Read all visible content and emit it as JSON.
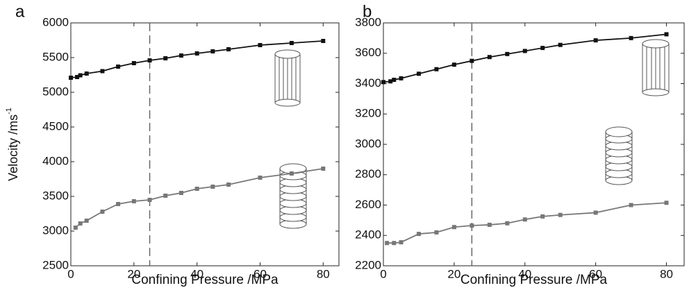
{
  "chart_data": [
    {
      "type": "line",
      "panel_label": "a",
      "ylabel": "Velocity /ms",
      "ylabel_sup": "-1",
      "xlabel": "Confining Pressure /MPa",
      "xlim": [
        0,
        85
      ],
      "xticks": [
        0,
        20,
        40,
        60,
        80
      ],
      "ylim": [
        2500,
        6000
      ],
      "yticks": [
        2500,
        3000,
        3500,
        4000,
        4500,
        5000,
        5500,
        6000
      ],
      "vline": 25,
      "series": [
        {
          "color": "#111111",
          "x": [
            0,
            2,
            3,
            5,
            10,
            15,
            20,
            25,
            30,
            35,
            40,
            45,
            50,
            60,
            70,
            80
          ],
          "values": [
            5210,
            5220,
            5245,
            5270,
            5305,
            5370,
            5420,
            5460,
            5490,
            5530,
            5560,
            5590,
            5620,
            5680,
            5710,
            5740
          ]
        },
        {
          "color": "#777777",
          "x": [
            1.5,
            3,
            5,
            10,
            15,
            20,
            25,
            30,
            35,
            40,
            45,
            50,
            60,
            70,
            80
          ],
          "values": [
            3050,
            3110,
            3150,
            3280,
            3390,
            3430,
            3450,
            3510,
            3550,
            3610,
            3640,
            3670,
            3770,
            3830,
            3900
          ]
        }
      ]
    },
    {
      "type": "line",
      "panel_label": "b",
      "xlabel": "Confining Pressure /MPa",
      "xlim": [
        0,
        85
      ],
      "xticks": [
        0,
        20,
        40,
        60,
        80
      ],
      "ylim": [
        2200,
        3800
      ],
      "yticks": [
        2200,
        2400,
        2600,
        2800,
        3000,
        3200,
        3400,
        3600,
        3800
      ],
      "vline": 25,
      "series": [
        {
          "color": "#111111",
          "x": [
            0,
            2,
            3,
            5,
            10,
            15,
            20,
            25,
            30,
            35,
            40,
            45,
            50,
            60,
            70,
            80
          ],
          "values": [
            3410,
            3415,
            3425,
            3435,
            3465,
            3495,
            3525,
            3550,
            3575,
            3595,
            3615,
            3635,
            3655,
            3685,
            3700,
            3725
          ]
        },
        {
          "color": "#777777",
          "x": [
            1,
            3,
            5,
            10,
            15,
            20,
            25,
            30,
            35,
            40,
            45,
            50,
            60,
            70,
            80
          ],
          "values": [
            2350,
            2350,
            2355,
            2410,
            2420,
            2455,
            2465,
            2470,
            2480,
            2505,
            2525,
            2535,
            2550,
            2600,
            2615
          ]
        }
      ]
    }
  ]
}
